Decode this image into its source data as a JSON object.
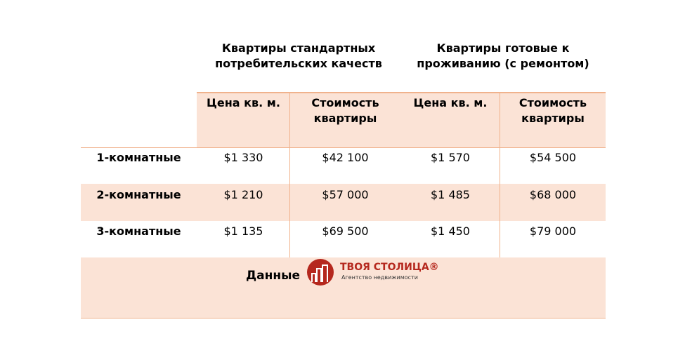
{
  "groups": [
    "Квартиры стандартных потребительских качеств",
    "Квартиры готовые к проживанию (с ремонтом)"
  ],
  "columns": [
    "Цена кв. м.",
    "Стоимость квартиры",
    "Цена кв. м.",
    "Стоимость квартиры"
  ],
  "rows": [
    {
      "label": "1-комнатные",
      "values": [
        "$1 330",
        "$42 100",
        "$1 570",
        "$54 500"
      ]
    },
    {
      "label": "2-комнатные",
      "values": [
        "$1 210",
        "$57 000",
        "$1 485",
        "$68 000"
      ]
    },
    {
      "label": "3-комнатные",
      "values": [
        "$1 135",
        "$69 500",
        "$1 450",
        "$79 000"
      ]
    }
  ],
  "footer": {
    "label": "Данные",
    "logo_title": "ТВОЯ СТОЛИЦА®",
    "logo_subtitle": "Агентство недвижимости"
  },
  "colors": {
    "peach": "#fbe3d6",
    "border": "#f0b28c",
    "logo_red": "#b5281e"
  }
}
